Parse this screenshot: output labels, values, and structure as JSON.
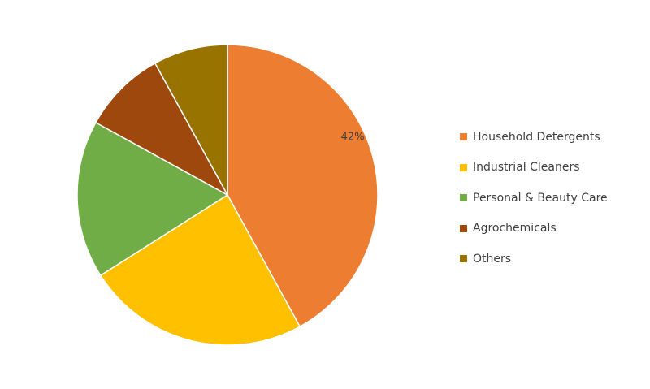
{
  "chart_data": {
    "type": "pie",
    "categories": [
      "Household Detergents",
      "Industrial Cleaners",
      "Personal & Beauty Care",
      "Agrochemicals",
      "Others"
    ],
    "values": [
      42,
      24,
      17,
      9,
      8
    ],
    "colors": [
      "#ED7D31",
      "#FFC000",
      "#70AD47",
      "#9E480E",
      "#997300"
    ],
    "data_labels": [
      "42%",
      "",
      "",
      "",
      ""
    ],
    "legend_position": "right",
    "start_angle": "12 o'clock",
    "direction": "clockwise"
  }
}
